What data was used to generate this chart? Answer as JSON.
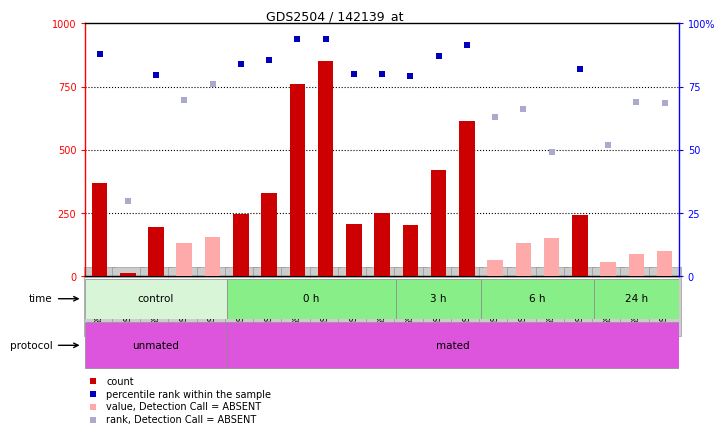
{
  "title": "GDS2504 / 142139_at",
  "samples": [
    "GSM112931",
    "GSM112935",
    "GSM112942",
    "GSM112943",
    "GSM112945",
    "GSM112946",
    "GSM112947",
    "GSM112948",
    "GSM112949",
    "GSM112950",
    "GSM112952",
    "GSM112962",
    "GSM112963",
    "GSM112964",
    "GSM112965",
    "GSM112967",
    "GSM112968",
    "GSM112970",
    "GSM112971",
    "GSM112972",
    "GSM113345"
  ],
  "count_values": [
    370,
    10,
    195,
    null,
    null,
    245,
    330,
    760,
    850,
    205,
    250,
    200,
    420,
    615,
    null,
    null,
    null,
    240,
    null,
    null,
    null
  ],
  "count_absent": [
    null,
    null,
    null,
    130,
    155,
    null,
    null,
    null,
    null,
    null,
    null,
    null,
    null,
    null,
    65,
    130,
    150,
    null,
    55,
    85,
    100
  ],
  "rank_values": [
    880,
    null,
    795,
    null,
    null,
    840,
    855,
    940,
    940,
    800,
    800,
    790,
    870,
    915,
    null,
    null,
    null,
    820,
    null,
    null,
    null
  ],
  "rank_absent": [
    null,
    295,
    null,
    695,
    760,
    null,
    null,
    null,
    null,
    null,
    null,
    null,
    null,
    null,
    630,
    660,
    490,
    null,
    520,
    690,
    685
  ],
  "time_groups": [
    {
      "label": "control",
      "start": 0,
      "end": 4,
      "color": "#d8f5d8"
    },
    {
      "label": "0 h",
      "start": 5,
      "end": 10,
      "color": "#88ee88"
    },
    {
      "label": "3 h",
      "start": 11,
      "end": 13,
      "color": "#88ee88"
    },
    {
      "label": "6 h",
      "start": 14,
      "end": 17,
      "color": "#88ee88"
    },
    {
      "label": "24 h",
      "start": 18,
      "end": 20,
      "color": "#88ee88"
    }
  ],
  "protocol_groups": [
    {
      "label": "unmated",
      "start": 0,
      "end": 4,
      "color": "#dd55dd"
    },
    {
      "label": "mated",
      "start": 5,
      "end": 20,
      "color": "#dd55dd"
    }
  ],
  "bar_color": "#cc0000",
  "bar_absent_color": "#ffaaaa",
  "rank_color": "#0000bb",
  "rank_absent_color": "#aaaacc"
}
